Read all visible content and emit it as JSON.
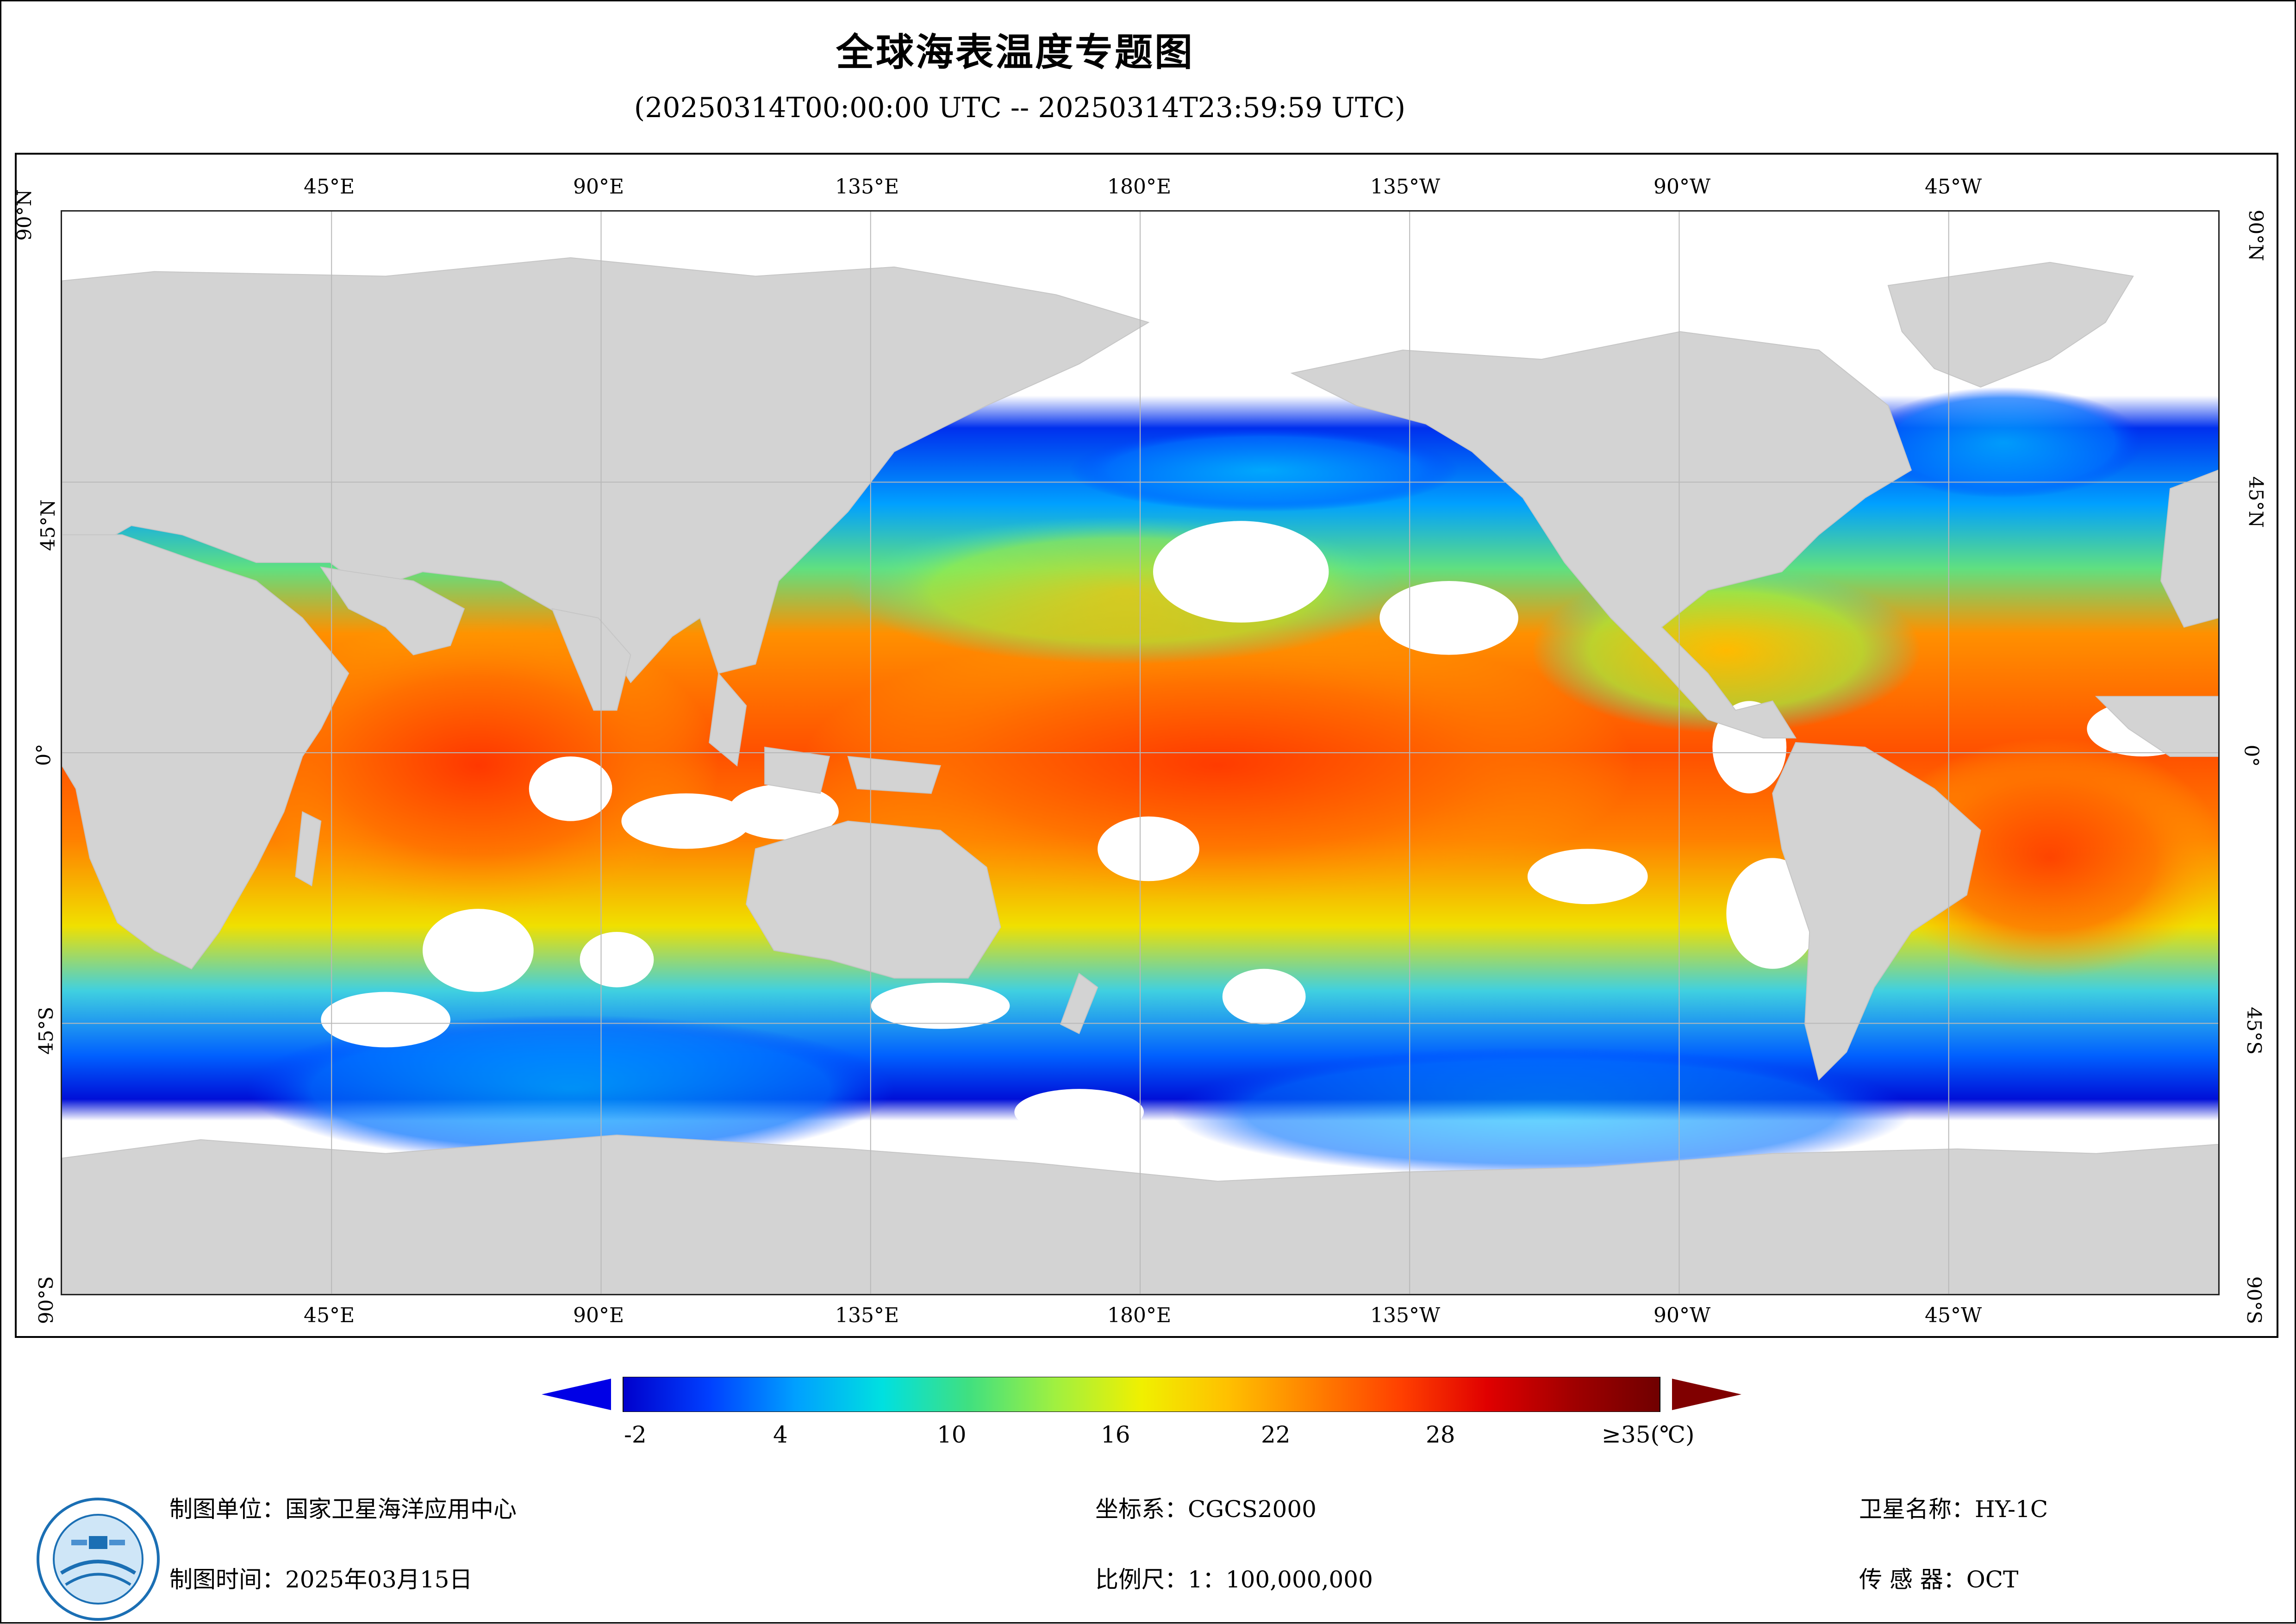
{
  "title": "全球海表温度专题图",
  "subtitle": "(20250314T00:00:00 UTC -- 20250314T23:59:59 UTC)",
  "map": {
    "longitude_labels": [
      "45°E",
      "90°E",
      "135°E",
      "180°E",
      "135°W",
      "90°W",
      "45°W"
    ],
    "latitude_labels": [
      "90°N",
      "45°N",
      "0°",
      "45°S",
      "90°S"
    ],
    "land_color": "#d3d3d3",
    "no_data_color": "#ffffff",
    "grid_color": "#b8b8b8"
  },
  "colorbar": {
    "labels": [
      "-2",
      "4",
      "10",
      "16",
      "22",
      "28",
      "≥35(℃)"
    ],
    "min": -2,
    "max": 35,
    "colors": [
      "#0000cc",
      "#0040ff",
      "#00a0ff",
      "#00e0e0",
      "#40e080",
      "#a0f040",
      "#f0f000",
      "#ffc000",
      "#ff8000",
      "#ff4000",
      "#e00000",
      "#a00000",
      "#700000"
    ],
    "under_color": "#0000e6",
    "over_color": "#800000"
  },
  "footer": {
    "org": "制图单位：国家卫星海洋应用中心",
    "date": "制图时间：2025年03月15日",
    "crs": "坐标系：CGCS2000",
    "scale": "比例尺：1：100,000,000",
    "satellite": "卫星名称：HY-1C",
    "sensor": "传 感 器：OCT"
  }
}
